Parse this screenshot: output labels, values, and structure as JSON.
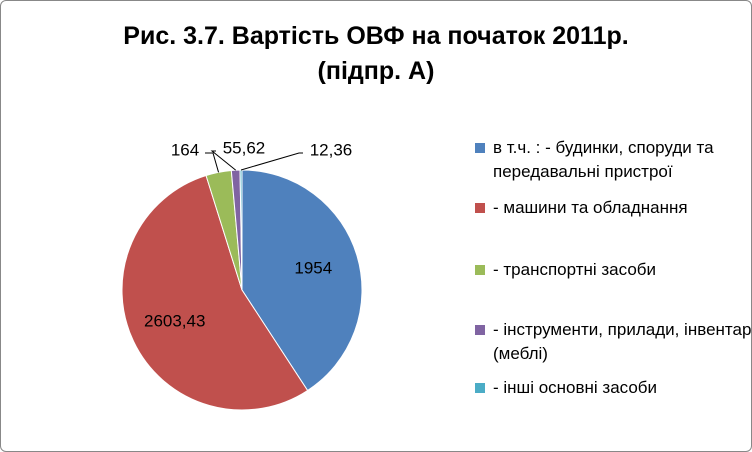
{
  "chart_data": {
    "type": "pie",
    "title": "Рис. 3.7. Вартість ОВФ на початок 2011р. (підпр. А)",
    "categories": [
      "в т.ч. : - будинки, споруди та передавальні пристрої",
      "- машини та обладнання",
      "- транспортні засоби",
      "- інструменти, прилади, інвентар (меблі)",
      "- інші основні засоби"
    ],
    "values": [
      1954,
      2603.43,
      164,
      55.62,
      12.36
    ],
    "value_labels": [
      "1954",
      "2603,43",
      "164",
      "55,62",
      "12,36"
    ],
    "colors": [
      "#4F81BD",
      "#C0504D",
      "#9BBB59",
      "#8064A2",
      "#4BACC6"
    ],
    "legend": "right"
  }
}
